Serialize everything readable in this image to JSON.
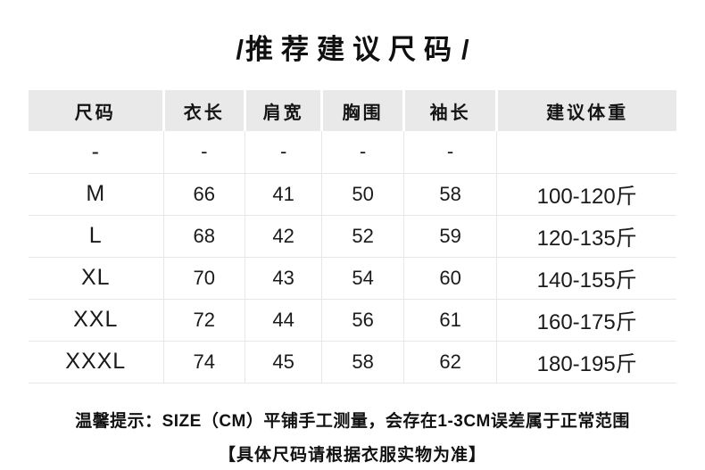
{
  "title": {
    "slash_left": "/",
    "text": "推荐建议尺码",
    "slash_right": "/"
  },
  "table": {
    "headers": [
      "尺码",
      "衣长",
      "肩宽",
      "胸围",
      "袖长",
      "建议体重"
    ],
    "rows": [
      [
        "-",
        "-",
        "-",
        "-",
        "-",
        ""
      ],
      [
        "M",
        "66",
        "41",
        "50",
        "58",
        "100-120斤"
      ],
      [
        "L",
        "68",
        "42",
        "52",
        "59",
        "120-135斤"
      ],
      [
        "XL",
        "70",
        "43",
        "54",
        "60",
        "140-155斤"
      ],
      [
        "XXL",
        "72",
        "44",
        "56",
        "61",
        "160-175斤"
      ],
      [
        "XXXL",
        "74",
        "45",
        "58",
        "62",
        "180-195斤"
      ]
    ]
  },
  "footer": {
    "line1": "温馨提示：SIZE（CM）平铺手工测量，会存在1-3CM误差属于正常范围",
    "line2": "【具体尺码请根据衣服实物为准】"
  },
  "colors": {
    "header_background": "#e9e9e9",
    "grid_line": "#e7e7e7",
    "text": "#141414",
    "page_background": "#ffffff"
  },
  "chart_data": {
    "type": "table",
    "title": "推荐建议尺码",
    "columns": [
      "尺码",
      "衣长",
      "肩宽",
      "胸围",
      "袖长",
      "建议体重"
    ],
    "unit": "CM",
    "rows": [
      {
        "尺码": "-",
        "衣长": "-",
        "肩宽": "-",
        "胸围": "-",
        "袖长": "-",
        "建议体重": ""
      },
      {
        "尺码": "M",
        "衣长": 66,
        "肩宽": 41,
        "胸围": 50,
        "袖长": 58,
        "建议体重": "100-120斤"
      },
      {
        "尺码": "L",
        "衣长": 68,
        "肩宽": 42,
        "胸围": 52,
        "袖长": 59,
        "建议体重": "120-135斤"
      },
      {
        "尺码": "XL",
        "衣长": 70,
        "肩宽": 43,
        "胸围": 54,
        "袖长": 60,
        "建议体重": "140-155斤"
      },
      {
        "尺码": "XXL",
        "衣长": 72,
        "肩宽": 44,
        "胸围": 56,
        "袖长": 61,
        "建议体重": "160-175斤"
      },
      {
        "尺码": "XXXL",
        "衣长": 74,
        "肩宽": 45,
        "胸围": 58,
        "袖长": 62,
        "建议体重": "180-195斤"
      }
    ]
  }
}
